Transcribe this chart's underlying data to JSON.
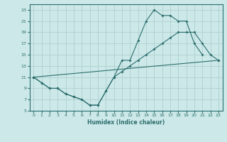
{
  "bg_color": "#cce8e8",
  "grid_color": "#b0d0d0",
  "line_color": "#2d6e6e",
  "xlabel": "Humidex (Indice chaleur)",
  "xlim": [
    -0.5,
    23.5
  ],
  "ylim": [
    5,
    24
  ],
  "yticks": [
    5,
    7,
    9,
    11,
    13,
    15,
    17,
    19,
    21,
    23
  ],
  "xticks": [
    0,
    1,
    2,
    3,
    4,
    5,
    6,
    7,
    8,
    9,
    10,
    11,
    12,
    13,
    14,
    15,
    16,
    17,
    18,
    19,
    20,
    21,
    22,
    23
  ],
  "series": [
    {
      "x": [
        0,
        1,
        2,
        3,
        4,
        5,
        6,
        7,
        8,
        9,
        10,
        11,
        12,
        13,
        14,
        15,
        16,
        17,
        18,
        19,
        20,
        21
      ],
      "y": [
        11,
        10,
        9,
        9,
        8,
        7.5,
        7,
        6,
        6,
        8.5,
        11,
        14,
        14,
        17.5,
        21,
        23,
        22,
        22,
        21,
        21,
        17,
        15
      ]
    },
    {
      "x": [
        0,
        1,
        2,
        3,
        4,
        5,
        6,
        7,
        8,
        9,
        10,
        11,
        12,
        13,
        14,
        15,
        16,
        17,
        18,
        19,
        20,
        21,
        22,
        23
      ],
      "y": [
        11,
        10,
        9,
        9,
        8,
        7.5,
        7,
        6,
        6,
        8.5,
        11,
        12,
        13,
        14,
        15,
        16,
        17,
        18,
        19,
        19,
        19,
        17,
        15,
        14
      ]
    },
    {
      "x": [
        0,
        23
      ],
      "y": [
        11,
        14
      ]
    }
  ]
}
